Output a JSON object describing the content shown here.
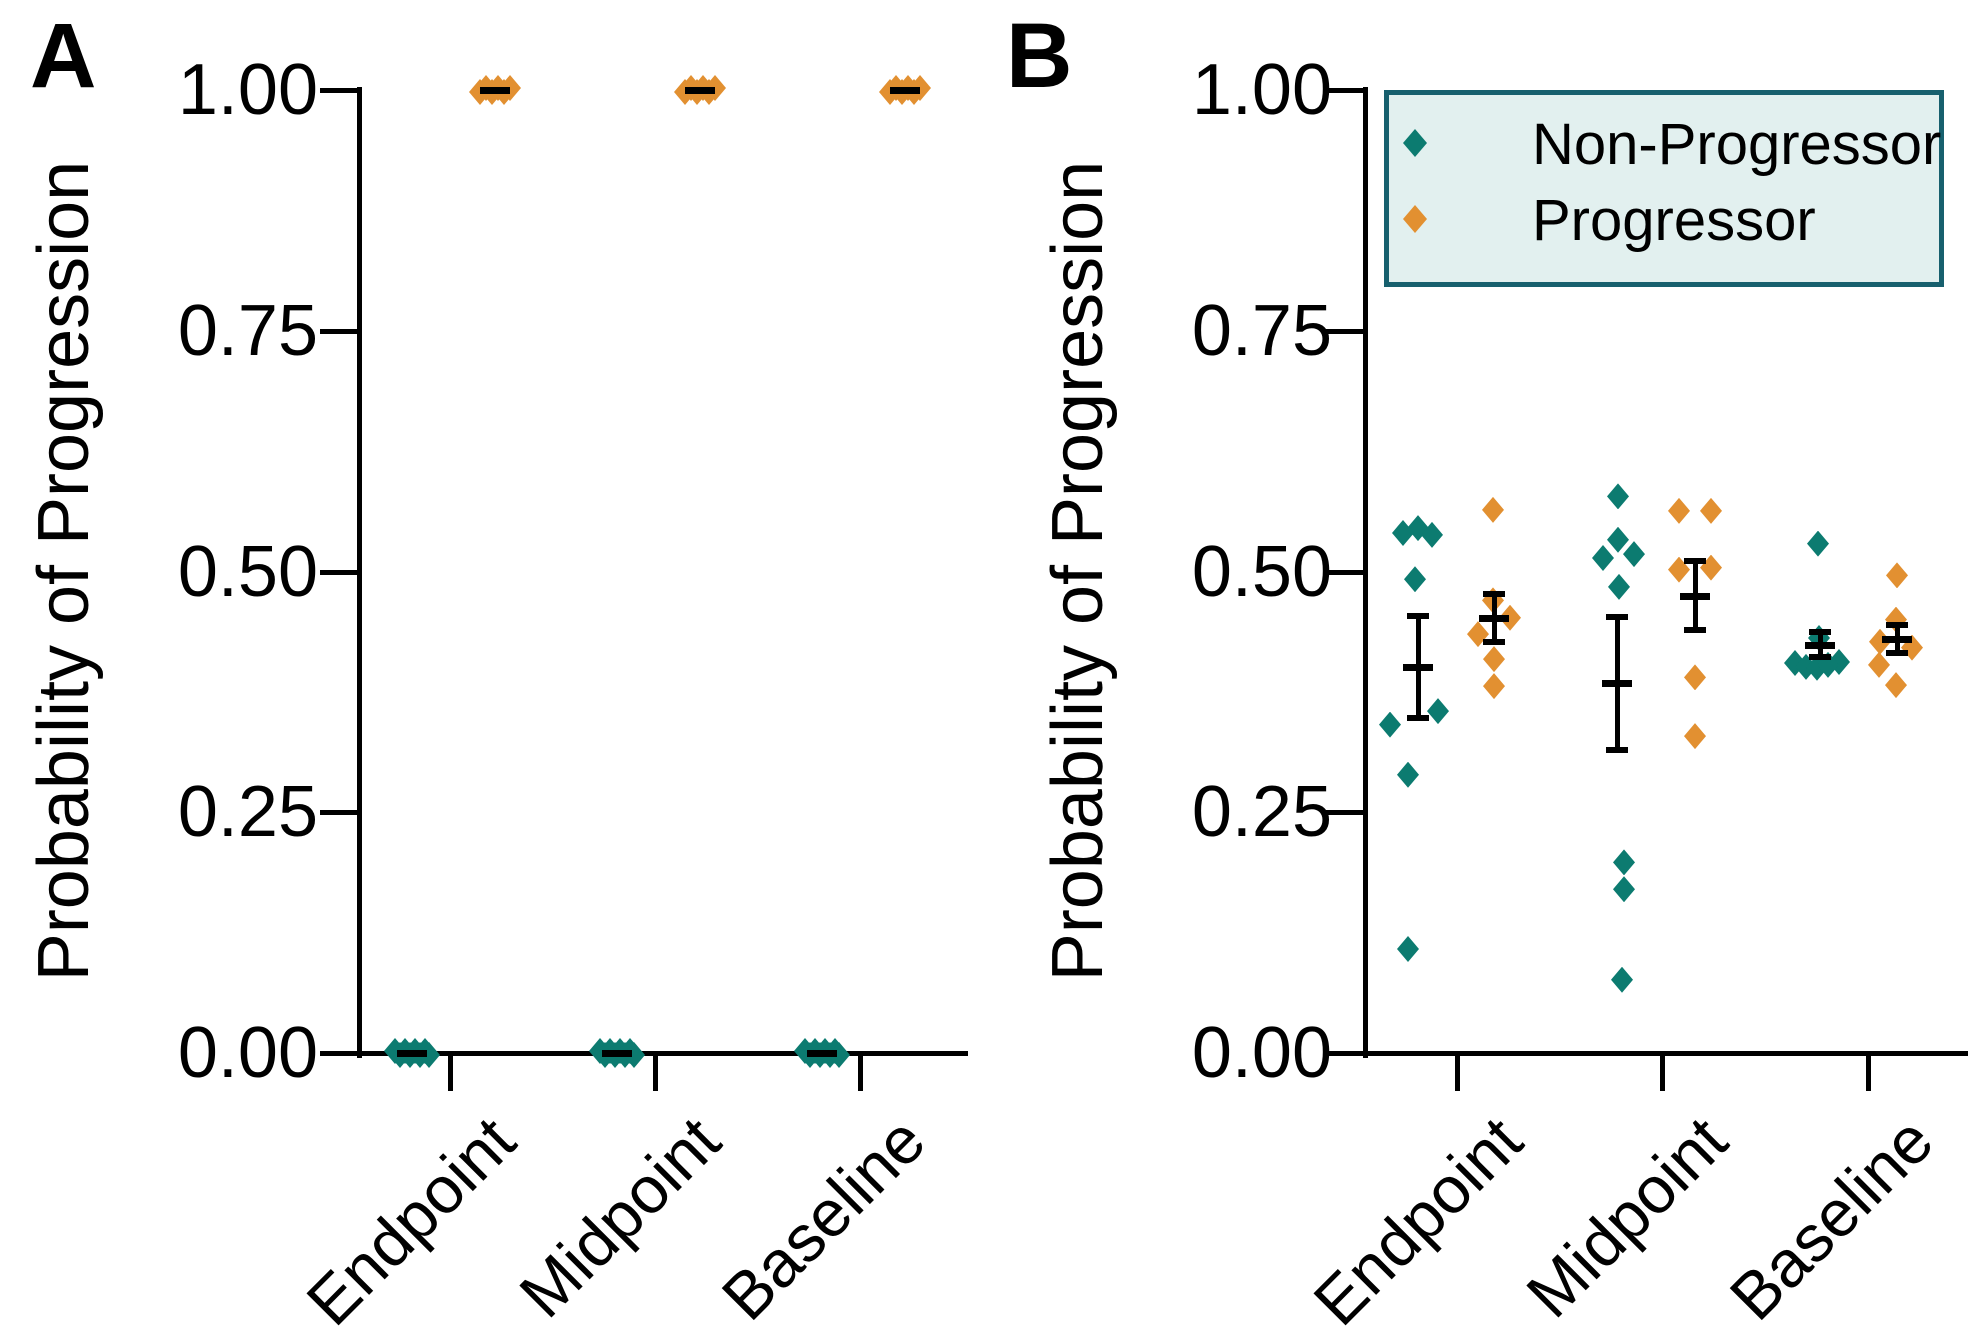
{
  "figure": {
    "panels": [
      {
        "id": "A",
        "label": "A"
      },
      {
        "id": "B",
        "label": "B"
      }
    ],
    "y_axis_label": "Probability of Progression",
    "legend": {
      "position": "top-right",
      "background": "#e2f0ef",
      "border_color": "#17606e",
      "items": [
        {
          "label": "Non-Progressor",
          "color": "#0c7b70"
        },
        {
          "label": "Progressor",
          "color": "#e29031"
        }
      ]
    },
    "colors": {
      "non_progressor": "#0c7b70",
      "progressor": "#e29031",
      "axis": "#000000",
      "error_bar": "#000000"
    }
  },
  "chart_data": [
    {
      "panel": "A",
      "type": "scatter",
      "title": "",
      "xlabel": "",
      "ylabel": "Probability of Progression",
      "ylim": [
        0.0,
        1.0
      ],
      "yticks": [
        1.0,
        0.75,
        0.5,
        0.25,
        0.0
      ],
      "ytick_labels": [
        "1.00",
        "0.75",
        "0.50",
        "0.25",
        "0.00"
      ],
      "categories": [
        "Endpoint",
        "Midpoint",
        "Baseline"
      ],
      "grid": false,
      "series": [
        {
          "name": "Non-Progressor",
          "color": "#0c7b70",
          "groups": [
            {
              "category": "Endpoint",
              "mean": 0.0,
              "sem": 0.0,
              "points": [
                {
                  "v": 0.0,
                  "dx": -17,
                  "dy": -2
                },
                {
                  "v": 0.0,
                  "dx": -12,
                  "dy": 2
                },
                {
                  "v": 0.0,
                  "dx": -7,
                  "dy": -2
                },
                {
                  "v": 0.0,
                  "dx": -2,
                  "dy": 2
                },
                {
                  "v": 0.0,
                  "dx": 3,
                  "dy": -2
                },
                {
                  "v": 0.0,
                  "dx": 8,
                  "dy": 2
                },
                {
                  "v": 0.0,
                  "dx": 13,
                  "dy": -2
                },
                {
                  "v": 0.0,
                  "dx": 17,
                  "dy": 2
                }
              ]
            },
            {
              "category": "Midpoint",
              "mean": 0.0,
              "sem": 0.0,
              "points": [
                {
                  "v": 0.0,
                  "dx": -17,
                  "dy": -2
                },
                {
                  "v": 0.0,
                  "dx": -12,
                  "dy": 2
                },
                {
                  "v": 0.0,
                  "dx": -7,
                  "dy": -2
                },
                {
                  "v": 0.0,
                  "dx": -2,
                  "dy": 2
                },
                {
                  "v": 0.0,
                  "dx": 3,
                  "dy": -2
                },
                {
                  "v": 0.0,
                  "dx": 8,
                  "dy": 2
                },
                {
                  "v": 0.0,
                  "dx": 13,
                  "dy": -2
                },
                {
                  "v": 0.0,
                  "dx": 17,
                  "dy": 2
                }
              ]
            },
            {
              "category": "Baseline",
              "mean": 0.0,
              "sem": 0.0,
              "points": [
                {
                  "v": 0.0,
                  "dx": -17,
                  "dy": -2
                },
                {
                  "v": 0.0,
                  "dx": -12,
                  "dy": 2
                },
                {
                  "v": 0.0,
                  "dx": -7,
                  "dy": -2
                },
                {
                  "v": 0.0,
                  "dx": -2,
                  "dy": 2
                },
                {
                  "v": 0.0,
                  "dx": 3,
                  "dy": -2
                },
                {
                  "v": 0.0,
                  "dx": 8,
                  "dy": 2
                },
                {
                  "v": 0.0,
                  "dx": 13,
                  "dy": -2
                },
                {
                  "v": 0.0,
                  "dx": 17,
                  "dy": 2
                }
              ]
            }
          ]
        },
        {
          "name": "Progressor",
          "color": "#e29031",
          "groups": [
            {
              "category": "Endpoint",
              "mean": 1.0,
              "sem": 0.0,
              "points": [
                {
                  "v": 1.0,
                  "dx": -15,
                  "dy": 2
                },
                {
                  "v": 1.0,
                  "dx": -9,
                  "dy": -2
                },
                {
                  "v": 1.0,
                  "dx": -3,
                  "dy": 2
                },
                {
                  "v": 1.0,
                  "dx": 3,
                  "dy": -2
                },
                {
                  "v": 1.0,
                  "dx": 9,
                  "dy": 2
                },
                {
                  "v": 1.0,
                  "dx": 15,
                  "dy": -2
                }
              ]
            },
            {
              "category": "Midpoint",
              "mean": 1.0,
              "sem": 0.0,
              "points": [
                {
                  "v": 1.0,
                  "dx": -15,
                  "dy": 2
                },
                {
                  "v": 1.0,
                  "dx": -9,
                  "dy": -2
                },
                {
                  "v": 1.0,
                  "dx": -3,
                  "dy": 2
                },
                {
                  "v": 1.0,
                  "dx": 3,
                  "dy": -2
                },
                {
                  "v": 1.0,
                  "dx": 9,
                  "dy": 2
                },
                {
                  "v": 1.0,
                  "dx": 15,
                  "dy": -2
                }
              ]
            },
            {
              "category": "Baseline",
              "mean": 1.0,
              "sem": 0.0,
              "points": [
                {
                  "v": 1.0,
                  "dx": -15,
                  "dy": 2
                },
                {
                  "v": 1.0,
                  "dx": -9,
                  "dy": -2
                },
                {
                  "v": 1.0,
                  "dx": -3,
                  "dy": 2
                },
                {
                  "v": 1.0,
                  "dx": 3,
                  "dy": -2
                },
                {
                  "v": 1.0,
                  "dx": 9,
                  "dy": 2
                },
                {
                  "v": 1.0,
                  "dx": 15,
                  "dy": -2
                }
              ]
            }
          ]
        }
      ]
    },
    {
      "panel": "B",
      "type": "scatter",
      "title": "",
      "xlabel": "",
      "ylabel": "Probability of Progression",
      "ylim": [
        0.0,
        1.0
      ],
      "yticks": [
        1.0,
        0.75,
        0.5,
        0.25,
        0.0
      ],
      "ytick_labels": [
        "1.00",
        "0.75",
        "0.50",
        "0.25",
        "0.00"
      ],
      "categories": [
        "Endpoint",
        "Midpoint",
        "Baseline"
      ],
      "grid": false,
      "legend_items": [
        "Non-Progressor",
        "Progressor"
      ],
      "series": [
        {
          "name": "Non-Progressor",
          "color": "#0c7b70",
          "groups": [
            {
              "category": "Endpoint",
              "mean": 0.401,
              "sem": 0.054,
              "points": [
                {
                  "v": 0.545,
                  "dx": 0
                },
                {
                  "v": 0.54,
                  "dx": -15
                },
                {
                  "v": 0.538,
                  "dx": 14
                },
                {
                  "v": 0.492,
                  "dx": -3
                },
                {
                  "v": 0.355,
                  "dx": 20
                },
                {
                  "v": 0.341,
                  "dx": -28
                },
                {
                  "v": 0.289,
                  "dx": -10
                },
                {
                  "v": 0.108,
                  "dx": -10
                }
              ]
            },
            {
              "category": "Midpoint",
              "mean": 0.384,
              "sem": 0.07,
              "points": [
                {
                  "v": 0.578,
                  "dx": 1
                },
                {
                  "v": 0.533,
                  "dx": 1
                },
                {
                  "v": 0.518,
                  "dx": 17
                },
                {
                  "v": 0.514,
                  "dx": -14
                },
                {
                  "v": 0.484,
                  "dx": 2
                },
                {
                  "v": 0.198,
                  "dx": 7
                },
                {
                  "v": 0.17,
                  "dx": 7
                },
                {
                  "v": 0.076,
                  "dx": 5
                }
              ]
            },
            {
              "category": "Baseline",
              "mean": 0.424,
              "sem": 0.014,
              "points": [
                {
                  "v": 0.529,
                  "dx": -2
                },
                {
                  "v": 0.431,
                  "dx": -1
                },
                {
                  "v": 0.406,
                  "dx": 19
                },
                {
                  "v": 0.405,
                  "dx": -25
                },
                {
                  "v": 0.401,
                  "dx": -14
                },
                {
                  "v": 0.4,
                  "dx": -3
                },
                {
                  "v": 0.403,
                  "dx": 8
                }
              ]
            }
          ]
        },
        {
          "name": "Progressor",
          "color": "#e29031",
          "groups": [
            {
              "category": "Endpoint",
              "mean": 0.452,
              "sem": 0.026,
              "points": [
                {
                  "v": 0.564,
                  "dx": -1
                },
                {
                  "v": 0.47,
                  "dx": -1
                },
                {
                  "v": 0.452,
                  "dx": 16
                },
                {
                  "v": 0.435,
                  "dx": -16
                },
                {
                  "v": 0.409,
                  "dx": 0
                },
                {
                  "v": 0.381,
                  "dx": 0
                }
              ]
            },
            {
              "category": "Midpoint",
              "mean": 0.475,
              "sem": 0.037,
              "points": [
                {
                  "v": 0.563,
                  "dx": -16
                },
                {
                  "v": 0.563,
                  "dx": 16
                },
                {
                  "v": 0.504,
                  "dx": 16
                },
                {
                  "v": 0.502,
                  "dx": -16
                },
                {
                  "v": 0.39,
                  "dx": 0
                },
                {
                  "v": 0.329,
                  "dx": 0
                }
              ]
            },
            {
              "category": "Baseline",
              "mean": 0.43,
              "sem": 0.016,
              "points": [
                {
                  "v": 0.496,
                  "dx": 0
                },
                {
                  "v": 0.45,
                  "dx": -1
                },
                {
                  "v": 0.427,
                  "dx": -17
                },
                {
                  "v": 0.421,
                  "dx": 15
                },
                {
                  "v": 0.403,
                  "dx": -18
                },
                {
                  "v": 0.382,
                  "dx": -1
                }
              ]
            }
          ]
        }
      ]
    }
  ]
}
